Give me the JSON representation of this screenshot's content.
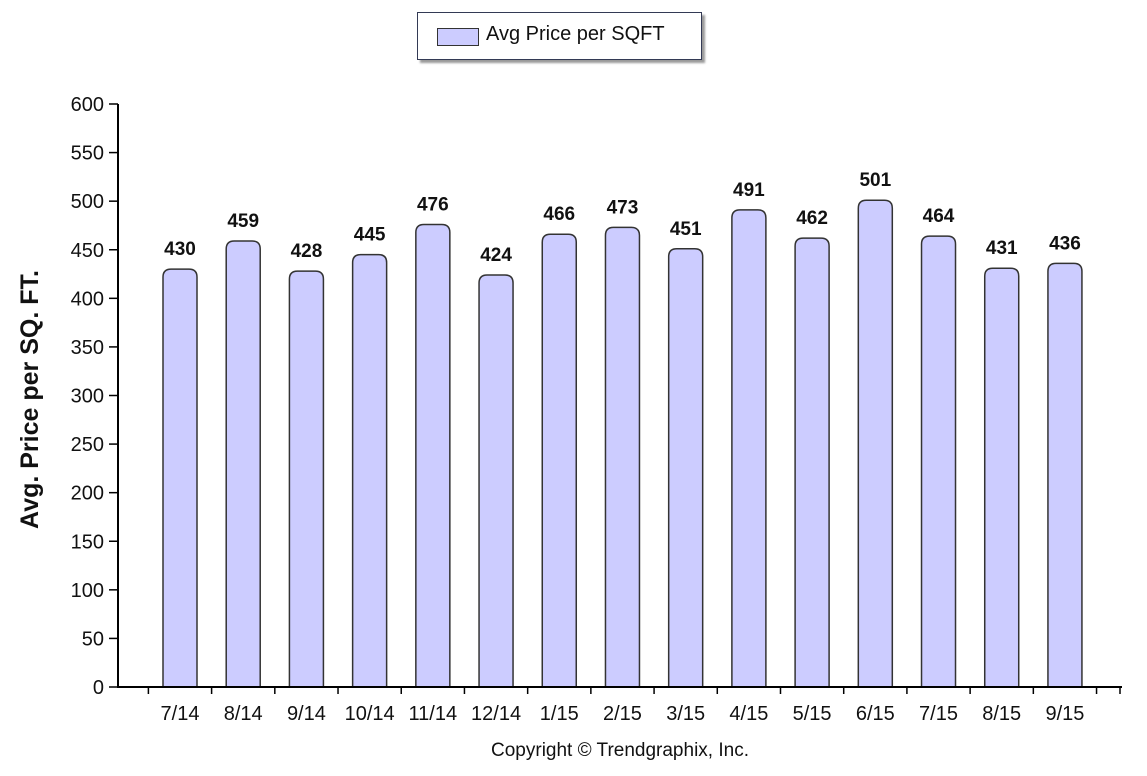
{
  "colors": {
    "bar_fill": "#ccccff",
    "bar_stroke": "#333333",
    "axis": "#000000",
    "text": "#111111"
  },
  "legend": {
    "label": "Avg Price per SQFT",
    "position": "top-center"
  },
  "copyright": "Copyright © Trendgraphix, Inc.",
  "chart_data": {
    "type": "bar",
    "categories": [
      "7/14",
      "8/14",
      "9/14",
      "10/14",
      "11/14",
      "12/14",
      "1/15",
      "2/15",
      "3/15",
      "4/15",
      "5/15",
      "6/15",
      "7/15",
      "8/15",
      "9/15"
    ],
    "series": [
      {
        "name": "Avg Price per SQFT",
        "values": [
          430,
          459,
          428,
          445,
          476,
          424,
          466,
          473,
          451,
          491,
          462,
          501,
          464,
          431,
          436
        ]
      }
    ],
    "xlabel": "",
    "ylabel": "Avg. Price per SQ. FT.",
    "ylim": [
      0,
      600
    ],
    "yticks": [
      0,
      50,
      100,
      150,
      200,
      250,
      300,
      350,
      400,
      450,
      500,
      550,
      600
    ],
    "data_labels": true,
    "grid": false
  }
}
